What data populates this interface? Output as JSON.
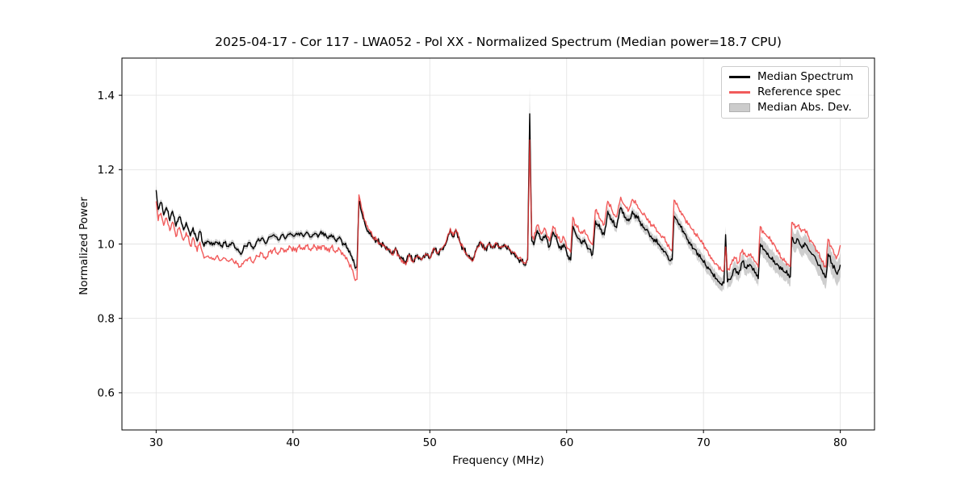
{
  "chart_data": {
    "type": "line",
    "title": "2025-04-17 - Cor 117 - LWA052 - Pol XX - Normalized Spectrum (Median power=18.7 CPU)",
    "xlabel": "Frequency (MHz)",
    "ylabel": "Normalized Power",
    "xlim": [
      27.5,
      82.5
    ],
    "ylim": [
      0.5,
      1.5
    ],
    "xticks": [
      30,
      40,
      50,
      60,
      70,
      80
    ],
    "yticks": [
      0.6,
      0.8,
      1.0,
      1.2,
      1.4
    ],
    "grid": true,
    "grid_color": "#e4e4e4",
    "legend_position": "upper right",
    "colors": {
      "median": "#000000",
      "reference": "#ee3232",
      "reference_opacity": 0.8,
      "mad_band": "#7d7d7d",
      "mad_band_opacity": 0.38
    },
    "legend": [
      {
        "label": "Median Spectrum",
        "color": "#000000",
        "type": "line"
      },
      {
        "label": "Reference spec",
        "color": "#f15b5b",
        "type": "line"
      },
      {
        "label": "Median Abs. Dev.",
        "color": "#cccccc",
        "type": "patch"
      }
    ],
    "points_format": [
      "freq_mhz",
      "median",
      "reference",
      "mad"
    ],
    "points": [
      [
        30.0,
        1.145,
        1.115,
        0.012
      ],
      [
        30.15,
        1.093,
        1.063,
        0.008
      ],
      [
        30.35,
        1.112,
        1.083,
        0.008
      ],
      [
        30.55,
        1.078,
        1.05,
        0.008
      ],
      [
        30.75,
        1.098,
        1.07,
        0.008
      ],
      [
        31.0,
        1.063,
        1.036,
        0.008
      ],
      [
        31.2,
        1.088,
        1.059,
        0.008
      ],
      [
        31.45,
        1.048,
        1.02,
        0.008
      ],
      [
        31.7,
        1.073,
        1.045,
        0.008
      ],
      [
        32.0,
        1.038,
        1.01,
        0.008
      ],
      [
        32.2,
        1.058,
        1.031,
        0.008
      ],
      [
        32.5,
        1.022,
        0.995,
        0.008
      ],
      [
        32.7,
        1.044,
        1.017,
        0.008
      ],
      [
        33.0,
        1.008,
        0.98,
        0.008
      ],
      [
        33.2,
        1.034,
        1.005,
        0.008
      ],
      [
        33.5,
        0.994,
        0.962,
        0.008
      ],
      [
        33.8,
        1.007,
        0.968,
        0.008
      ],
      [
        34.1,
        0.997,
        0.959,
        0.008
      ],
      [
        34.4,
        1.005,
        0.966,
        0.008
      ],
      [
        34.7,
        0.995,
        0.955,
        0.008
      ],
      [
        35.0,
        1.003,
        0.962,
        0.008
      ],
      [
        35.3,
        0.993,
        0.953,
        0.008
      ],
      [
        35.6,
        1.003,
        0.957,
        0.008
      ],
      [
        35.9,
        0.984,
        0.947,
        0.008
      ],
      [
        36.2,
        0.972,
        0.939,
        0.008
      ],
      [
        36.5,
        0.994,
        0.955,
        0.008
      ],
      [
        36.8,
        1.004,
        0.962,
        0.008
      ],
      [
        37.1,
        0.987,
        0.949,
        0.008
      ],
      [
        37.4,
        1.009,
        0.967,
        0.008
      ],
      [
        37.7,
        1.015,
        0.975,
        0.008
      ],
      [
        38.0,
        1.001,
        0.959,
        0.008
      ],
      [
        38.3,
        1.019,
        0.979,
        0.008
      ],
      [
        38.6,
        1.025,
        0.985,
        0.008
      ],
      [
        38.9,
        1.011,
        0.972,
        0.008
      ],
      [
        39.2,
        1.025,
        0.987,
        0.008
      ],
      [
        39.5,
        1.017,
        0.979,
        0.008
      ],
      [
        39.8,
        1.029,
        0.992,
        0.008
      ],
      [
        40.1,
        1.021,
        0.982,
        0.008
      ],
      [
        40.4,
        1.029,
        0.992,
        0.008
      ],
      [
        40.7,
        1.023,
        0.985,
        0.008
      ],
      [
        41.0,
        1.032,
        0.995,
        0.008
      ],
      [
        41.3,
        1.019,
        0.982,
        0.008
      ],
      [
        41.6,
        1.029,
        0.993,
        0.008
      ],
      [
        41.9,
        1.024,
        0.987,
        0.008
      ],
      [
        42.2,
        1.031,
        0.995,
        0.008
      ],
      [
        42.5,
        1.017,
        0.982,
        0.008
      ],
      [
        42.8,
        1.025,
        0.991,
        0.008
      ],
      [
        43.1,
        1.011,
        0.977,
        0.008
      ],
      [
        43.4,
        1.019,
        0.985,
        0.008
      ],
      [
        43.7,
        1.001,
        0.969,
        0.008
      ],
      [
        44.0,
        0.989,
        0.955,
        0.008
      ],
      [
        44.3,
        0.967,
        0.932,
        0.008
      ],
      [
        44.55,
        0.935,
        0.902,
        0.008
      ],
      [
        44.68,
        0.938,
        0.905,
        0.009
      ],
      [
        44.82,
        1.115,
        1.132,
        0.012
      ],
      [
        45.0,
        1.088,
        1.1,
        0.009
      ],
      [
        45.25,
        1.055,
        1.062,
        0.008
      ],
      [
        45.5,
        1.035,
        1.04,
        0.007
      ],
      [
        45.8,
        1.02,
        1.022,
        0.006
      ],
      [
        46.1,
        1.01,
        1.011,
        0.006
      ],
      [
        46.4,
        1.001,
        1.0,
        0.006
      ],
      [
        46.7,
        0.995,
        0.993,
        0.006
      ],
      [
        47.0,
        0.987,
        0.985,
        0.006
      ],
      [
        47.25,
        0.974,
        0.972,
        0.006
      ],
      [
        47.5,
        0.99,
        0.988,
        0.006
      ],
      [
        47.75,
        0.97,
        0.967,
        0.006
      ],
      [
        48.0,
        0.96,
        0.957,
        0.006
      ],
      [
        48.25,
        0.947,
        0.944,
        0.006
      ],
      [
        48.5,
        0.974,
        0.971,
        0.006
      ],
      [
        48.8,
        0.954,
        0.951,
        0.006
      ],
      [
        49.1,
        0.971,
        0.969,
        0.006
      ],
      [
        49.4,
        0.959,
        0.957,
        0.006
      ],
      [
        49.7,
        0.975,
        0.974,
        0.006
      ],
      [
        50.0,
        0.962,
        0.962,
        0.006
      ],
      [
        50.3,
        0.989,
        0.989,
        0.006
      ],
      [
        50.6,
        0.974,
        0.975,
        0.006
      ],
      [
        50.9,
        0.987,
        0.989,
        0.006
      ],
      [
        51.2,
        1.004,
        1.007,
        0.006
      ],
      [
        51.5,
        1.039,
        1.042,
        0.006
      ],
      [
        51.7,
        1.019,
        1.022,
        0.006
      ],
      [
        51.9,
        1.037,
        1.04,
        0.006
      ],
      [
        52.2,
        1.004,
        1.006,
        0.006
      ],
      [
        52.5,
        0.984,
        0.985,
        0.006
      ],
      [
        52.8,
        0.967,
        0.967,
        0.006
      ],
      [
        53.1,
        0.954,
        0.954,
        0.006
      ],
      [
        53.4,
        0.984,
        0.984,
        0.006
      ],
      [
        53.7,
        1.005,
        1.006,
        0.006
      ],
      [
        54.0,
        0.984,
        0.985,
        0.006
      ],
      [
        54.3,
        0.999,
        1.001,
        0.006
      ],
      [
        54.6,
        0.989,
        0.991,
        0.006
      ],
      [
        54.9,
        0.999,
        1.002,
        0.006
      ],
      [
        55.2,
        0.987,
        0.99,
        0.006
      ],
      [
        55.5,
        0.995,
        0.998,
        0.006
      ],
      [
        55.8,
        0.984,
        0.987,
        0.006
      ],
      [
        56.1,
        0.974,
        0.977,
        0.006
      ],
      [
        56.4,
        0.961,
        0.965,
        0.006
      ],
      [
        56.7,
        0.954,
        0.957,
        0.006
      ],
      [
        57.0,
        0.943,
        0.947,
        0.006
      ],
      [
        57.15,
        0.958,
        0.96,
        0.008
      ],
      [
        57.3,
        1.35,
        1.28,
        0.07
      ],
      [
        57.45,
        1.008,
        1.022,
        0.01
      ],
      [
        57.6,
        0.998,
        1.012,
        0.01
      ],
      [
        57.85,
        1.036,
        1.051,
        0.01
      ],
      [
        58.15,
        1.012,
        1.027,
        0.01
      ],
      [
        58.45,
        1.024,
        1.039,
        0.01
      ],
      [
        58.75,
        0.993,
        1.008,
        0.01
      ],
      [
        59.0,
        1.032,
        1.048,
        0.01
      ],
      [
        59.3,
        1.008,
        1.026,
        0.01
      ],
      [
        59.6,
        0.985,
        1.004,
        0.01
      ],
      [
        59.8,
        1.0,
        1.018,
        0.01
      ],
      [
        60.05,
        0.968,
        0.988,
        0.01
      ],
      [
        60.3,
        0.957,
        0.978,
        0.01
      ],
      [
        60.45,
        1.048,
        1.072,
        0.011
      ],
      [
        60.75,
        1.02,
        1.045,
        0.011
      ],
      [
        61.05,
        1.003,
        1.028,
        0.011
      ],
      [
        61.3,
        1.012,
        1.038,
        0.011
      ],
      [
        61.6,
        0.988,
        1.013,
        0.011
      ],
      [
        61.9,
        0.972,
        0.998,
        0.011
      ],
      [
        62.1,
        1.062,
        1.09,
        0.012
      ],
      [
        62.45,
        1.04,
        1.068,
        0.012
      ],
      [
        62.75,
        1.025,
        1.053,
        0.012
      ],
      [
        63.0,
        1.088,
        1.115,
        0.013
      ],
      [
        63.35,
        1.058,
        1.087,
        0.013
      ],
      [
        63.65,
        1.044,
        1.073,
        0.013
      ],
      [
        63.95,
        1.098,
        1.126,
        0.013
      ],
      [
        64.3,
        1.072,
        1.101,
        0.013
      ],
      [
        64.55,
        1.062,
        1.092,
        0.013
      ],
      [
        64.8,
        1.088,
        1.12,
        0.013
      ],
      [
        65.3,
        1.062,
        1.095,
        0.013
      ],
      [
        65.8,
        1.038,
        1.072,
        0.013
      ],
      [
        66.3,
        1.015,
        1.048,
        0.013
      ],
      [
        66.8,
        0.995,
        1.028,
        0.013
      ],
      [
        67.3,
        0.972,
        1.005,
        0.013
      ],
      [
        67.6,
        0.955,
        0.985,
        0.013
      ],
      [
        67.72,
        0.958,
        0.988,
        0.014
      ],
      [
        67.85,
        1.075,
        1.118,
        0.015
      ],
      [
        68.2,
        1.052,
        1.095,
        0.015
      ],
      [
        68.6,
        1.028,
        1.072,
        0.015
      ],
      [
        69.0,
        1.005,
        1.05,
        0.016
      ],
      [
        69.4,
        0.985,
        1.028,
        0.016
      ],
      [
        69.8,
        0.962,
        1.006,
        0.017
      ],
      [
        70.2,
        0.94,
        0.984,
        0.017
      ],
      [
        70.6,
        0.922,
        0.963,
        0.018
      ],
      [
        71.0,
        0.905,
        0.944,
        0.018
      ],
      [
        71.35,
        0.889,
        0.928,
        0.018
      ],
      [
        71.5,
        0.895,
        0.93,
        0.02
      ],
      [
        71.62,
        1.025,
        0.992,
        0.022
      ],
      [
        71.75,
        0.898,
        0.93,
        0.02
      ],
      [
        72.05,
        0.912,
        0.946,
        0.02
      ],
      [
        72.25,
        0.933,
        0.965,
        0.02
      ],
      [
        72.55,
        0.918,
        0.95,
        0.02
      ],
      [
        72.85,
        0.953,
        0.985,
        0.021
      ],
      [
        73.15,
        0.934,
        0.966,
        0.021
      ],
      [
        73.45,
        0.943,
        0.974,
        0.021
      ],
      [
        73.75,
        0.923,
        0.953,
        0.022
      ],
      [
        74.0,
        0.907,
        0.938,
        0.022
      ],
      [
        74.15,
        1.0,
        1.047,
        0.023
      ],
      [
        74.5,
        0.982,
        1.028,
        0.023
      ],
      [
        74.9,
        0.962,
        1.008,
        0.024
      ],
      [
        75.3,
        0.945,
        0.988,
        0.024
      ],
      [
        75.7,
        0.931,
        0.963,
        0.024
      ],
      [
        75.95,
        0.924,
        0.953,
        0.024
      ],
      [
        76.35,
        0.912,
        0.94,
        0.025
      ],
      [
        76.45,
        1.018,
        1.058,
        0.025
      ],
      [
        76.7,
        1.002,
        1.042,
        0.025
      ],
      [
        76.9,
        1.013,
        1.05,
        0.025
      ],
      [
        77.15,
        0.993,
        1.033,
        0.026
      ],
      [
        77.4,
        1.003,
        1.04,
        0.026
      ],
      [
        77.7,
        0.983,
        1.018,
        0.026
      ],
      [
        78.0,
        0.972,
        1.003,
        0.027
      ],
      [
        78.3,
        0.952,
        0.983,
        0.028
      ],
      [
        78.6,
        0.933,
        0.96,
        0.029
      ],
      [
        78.95,
        0.91,
        0.938,
        0.03
      ],
      [
        79.1,
        0.973,
        1.013,
        0.03
      ],
      [
        79.4,
        0.948,
        0.988,
        0.031
      ],
      [
        79.7,
        0.923,
        0.96,
        0.032
      ],
      [
        79.85,
        0.928,
        0.972,
        0.032
      ],
      [
        80.0,
        0.944,
        0.997,
        0.032
      ]
    ]
  }
}
